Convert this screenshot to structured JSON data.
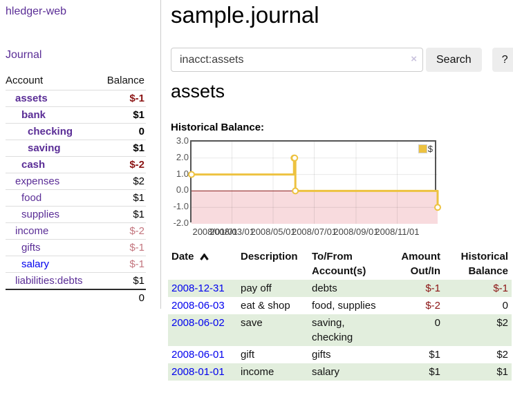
{
  "colors": {
    "accent_purple": "#5a2d96",
    "link_blue": "#0000ee",
    "negative_dark": "#8b1414",
    "negative_faint": "#c3757e",
    "row_green": "#e2eedd",
    "chart_line": "#edc240",
    "chart_negative_fill": "#f8dbde",
    "chart_zero_line": "#8b1a1a"
  },
  "sidebar": {
    "brand": "hledger-web",
    "journal_link": "Journal",
    "accounts": {
      "col_account": "Account",
      "col_balance": "Balance",
      "rows": [
        {
          "name": "assets",
          "balance": "$-1",
          "depth": 1,
          "bold": true,
          "neg": "dark"
        },
        {
          "name": "bank",
          "balance": "$1",
          "depth": 2,
          "bold": true,
          "neg": null
        },
        {
          "name": "checking",
          "balance": "0",
          "depth": 3,
          "bold": true,
          "neg": null
        },
        {
          "name": "saving",
          "balance": "$1",
          "depth": 3,
          "bold": true,
          "neg": null
        },
        {
          "name": "cash",
          "balance": "$-2",
          "depth": 2,
          "bold": true,
          "neg": "dark"
        },
        {
          "name": "expenses",
          "balance": "$2",
          "depth": 1,
          "bold": false,
          "neg": null
        },
        {
          "name": "food",
          "balance": "$1",
          "depth": 2,
          "bold": false,
          "neg": null
        },
        {
          "name": "supplies",
          "balance": "$1",
          "depth": 2,
          "bold": false,
          "neg": null
        },
        {
          "name": "income",
          "balance": "$-2",
          "depth": 1,
          "bold": false,
          "neg": "faint"
        },
        {
          "name": "gifts",
          "balance": "$-1",
          "depth": 2,
          "bold": false,
          "neg": "faint"
        },
        {
          "name": "salary",
          "balance": "$-1",
          "depth": 2,
          "bold": false,
          "neg": "faint",
          "blue": true
        },
        {
          "name": "liabilities:debts",
          "balance": "$1",
          "depth": 1,
          "bold": false,
          "neg": null
        }
      ],
      "total": "0"
    }
  },
  "header": {
    "title": "sample.journal"
  },
  "search": {
    "query": "inacct:assets",
    "clear_icon": "×",
    "search_button": "Search",
    "help_button": "?"
  },
  "account_page": {
    "heading": "assets",
    "section_label": "Historical Balance:"
  },
  "chart_data": {
    "type": "line",
    "step": true,
    "title": "Historical Balance",
    "series": [
      {
        "name": "$",
        "color": "#edc240",
        "points": [
          [
            "2008-01-01",
            1
          ],
          [
            "2008-06-01",
            2
          ],
          [
            "2008-06-02",
            2
          ],
          [
            "2008-06-03",
            0
          ],
          [
            "2008-12-31",
            -1
          ]
        ]
      }
    ],
    "x_range": [
      "2008-01-01",
      "2008-12-31"
    ],
    "ylim": [
      -2,
      3
    ],
    "yticks": [
      3,
      2,
      1,
      0,
      -1,
      -2
    ],
    "ytick_labels": [
      "3.0",
      "2.0",
      "1.0",
      "0.0",
      "-1.0",
      "-2.0"
    ],
    "xtick_dates": [
      "2008-01-01",
      "2008-03-01",
      "2008-05-01",
      "2008-07-01",
      "2008-09-01",
      "2008-11-01"
    ],
    "xtick_labels": [
      "2008/01/01",
      "2008/03/01",
      "2008/05/01",
      "2008/07/01",
      "2008/09/01",
      "2008/11/01"
    ],
    "legend": {
      "label": "$",
      "position": "top-right"
    },
    "grid": true,
    "negative_region": {
      "from": 0,
      "to": -2,
      "color": "#f8dbde"
    },
    "zero_line_color": "#8b1a1a"
  },
  "register": {
    "columns": [
      {
        "label": "Date",
        "sorted": "asc"
      },
      {
        "label": "Description"
      },
      {
        "label": "To/From Account(s)"
      },
      {
        "label": "Amount Out/In",
        "align": "right"
      },
      {
        "label": "Historical Balance",
        "align": "right"
      }
    ],
    "rows": [
      {
        "date": "2008-12-31",
        "description": "pay off",
        "accounts": "debts",
        "amount": "$-1",
        "balance": "$-1"
      },
      {
        "date": "2008-06-03",
        "description": "eat & shop",
        "accounts": "food, supplies",
        "amount": "$-2",
        "balance": "0"
      },
      {
        "date": "2008-06-02",
        "description": "save",
        "accounts": "saving, checking",
        "amount": "0",
        "balance": "$2"
      },
      {
        "date": "2008-06-01",
        "description": "gift",
        "accounts": "gifts",
        "amount": "$1",
        "balance": "$2"
      },
      {
        "date": "2008-01-01",
        "description": "income",
        "accounts": "salary",
        "amount": "$1",
        "balance": "$1"
      }
    ]
  }
}
